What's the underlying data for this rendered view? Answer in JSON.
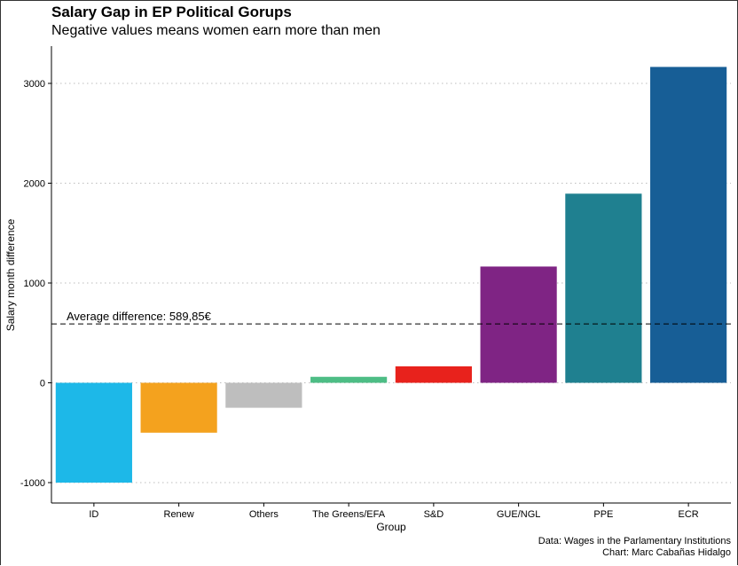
{
  "chart_data": {
    "type": "bar",
    "title": "Salary Gap in EP Political Gorups",
    "subtitle": "Negative values means women earn more than men",
    "xlabel": "Group",
    "ylabel": "Salary month difference",
    "categories": [
      "ID",
      "Renew",
      "Others",
      "The Greens/EFA",
      "S&D",
      "GUE/NGL",
      "PPE",
      "ECR"
    ],
    "values": [
      -1000,
      -500,
      -250,
      60,
      165,
      1165,
      1895,
      3165
    ],
    "colors": [
      "#1DB8E8",
      "#F4A21E",
      "#BEBEBE",
      "#4DBD85",
      "#E8221C",
      "#7F2484",
      "#1F8090",
      "#175E96"
    ],
    "ylim": [
      -1200,
      3350
    ],
    "yticks": [
      -1000,
      0,
      1000,
      2000,
      3000
    ],
    "ytick_labels": [
      "-1000",
      "0",
      "1000",
      "2000",
      "3000"
    ],
    "grid": "horizontal dotted",
    "reference_line": {
      "value": 589.85,
      "label": "Average difference: 589,85€"
    },
    "caption_lines": [
      "Data: Wages in the Parlamentary Institutions",
      "Chart: Marc Cabañas Hidalgo"
    ]
  }
}
